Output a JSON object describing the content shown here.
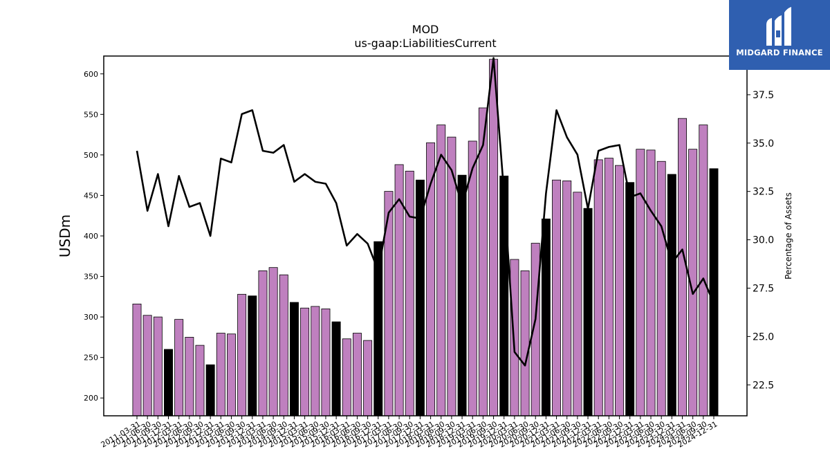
{
  "chart_data": {
    "type": "bar",
    "title": "MOD",
    "subtitle": "us-gaap:LiabilitiesCurrent",
    "ylabel": "USDm",
    "y2label": "Percentage of Assets",
    "ylim": [
      178,
      622
    ],
    "y2lim": [
      20.9,
      39.5
    ],
    "yticks": [
      200,
      250,
      300,
      350,
      400,
      450,
      500,
      550,
      600
    ],
    "y2ticks": [
      22.5,
      25.0,
      27.5,
      30.0,
      32.5,
      35.0,
      37.5
    ],
    "y2tick_labels": [
      "22.5",
      "25.0",
      "27.5",
      "30.0",
      "32.5",
      "35.0",
      "37.5"
    ],
    "categories": [
      "2011-03-31",
      "2011-06-30",
      "2011-09-30",
      "2011-12-31",
      "2012-03-31",
      "2012-06-30",
      "2012-09-30",
      "2012-12-31",
      "2013-03-31",
      "2013-06-30",
      "2013-09-30",
      "2013-12-31",
      "2014-03-31",
      "2014-06-30",
      "2014-09-30",
      "2014-12-31",
      "2015-03-31",
      "2015-06-30",
      "2015-09-30",
      "2015-12-31",
      "2016-03-31",
      "2016-06-30",
      "2016-09-30",
      "2016-12-31",
      "2017-03-31",
      "2017-06-30",
      "2017-09-30",
      "2017-12-31",
      "2018-03-31",
      "2018-06-30",
      "2018-09-30",
      "2018-12-31",
      "2019-03-31",
      "2019-06-30",
      "2019-09-30",
      "2019-12-31",
      "2020-03-31",
      "2020-06-30",
      "2020-09-30",
      "2020-12-31",
      "2021-03-31",
      "2021-06-30",
      "2021-09-30",
      "2021-12-31",
      "2022-03-31",
      "2022-06-30",
      "2022-09-30",
      "2022-12-31",
      "2023-03-31",
      "2023-06-30",
      "2023-09-30",
      "2023-12-31",
      "2024-03-31",
      "2024-06-30",
      "2024-09-30",
      "2024-12-31"
    ],
    "series": [
      {
        "type": "bar",
        "values": [
          316,
          302,
          300,
          260,
          297,
          275,
          265,
          241,
          280,
          279,
          328,
          326,
          357,
          361,
          352,
          318,
          311,
          313,
          310,
          294,
          273,
          280,
          271,
          393,
          455,
          488,
          480,
          469,
          515,
          537,
          522,
          475,
          517,
          558,
          618,
          474,
          371,
          357,
          391,
          421,
          469,
          468,
          454,
          434,
          494,
          496,
          487,
          466,
          507,
          506,
          492,
          476,
          545,
          507,
          537,
          483
        ],
        "highlight_color": "#000000",
        "color": "#bf80bf",
        "highlighted_indices": [
          3,
          7,
          11,
          15,
          19,
          23,
          27,
          31,
          35,
          39,
          43,
          47,
          51,
          55
        ]
      },
      {
        "type": "line",
        "axis": "secondary",
        "color": "#000000",
        "values": [
          34.6,
          31.5,
          33.4,
          30.7,
          33.3,
          31.7,
          31.9,
          30.2,
          34.2,
          34.0,
          36.5,
          36.7,
          34.6,
          34.5,
          34.9,
          33.0,
          33.4,
          33.0,
          32.9,
          31.9,
          29.7,
          30.3,
          29.8,
          28.4,
          31.4,
          32.1,
          31.2,
          31.1,
          32.9,
          34.4,
          33.6,
          31.8,
          33.7,
          34.9,
          39.4,
          32.4,
          24.2,
          23.5,
          25.9,
          32.4,
          36.7,
          35.3,
          34.4,
          31.6,
          34.6,
          34.8,
          34.9,
          32.2,
          32.4,
          31.5,
          30.7,
          28.8,
          29.5,
          27.2,
          28.0,
          26.7
        ]
      }
    ]
  },
  "logo": {
    "text": "MIDGARD FINANCE",
    "background": "#2f5fb0"
  }
}
